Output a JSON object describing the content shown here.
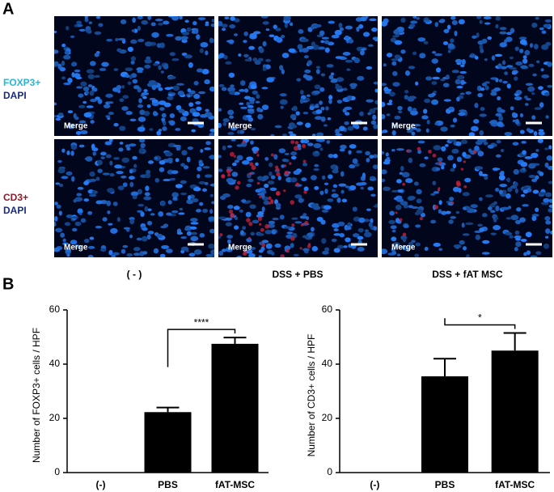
{
  "panel_labels": [
    "A",
    "B"
  ],
  "panel_a": {
    "rows": [
      {
        "marker": "FOXP3+",
        "stain": "DAPI"
      },
      {
        "marker": "CD3+",
        "stain": "DAPI"
      }
    ],
    "columns": [
      "( - )",
      "DSS + PBS",
      "DSS + fAT MSC"
    ],
    "image_label": "Merge"
  },
  "chart_data": [
    {
      "type": "bar",
      "y_label": "Number of FOXP3+ cells / HPF",
      "categories": [
        "(-)",
        "PBS",
        "fAT-MSC"
      ],
      "values": [
        0,
        22.3,
        47.5
      ],
      "errors": [
        0,
        1.7,
        2.3
      ],
      "color": "#000000",
      "ylim": [
        0,
        60
      ],
      "yticks": [
        0,
        20,
        40,
        60
      ],
      "significance": "****"
    },
    {
      "type": "bar",
      "y_label": "Number of CD3+ cells / HPF",
      "categories": [
        "(-)",
        "PBS",
        "fAT-MSC"
      ],
      "values": [
        0,
        35.5,
        45
      ],
      "errors": [
        0,
        6.5,
        6.5
      ],
      "color": "#000000",
      "ylim": [
        0,
        60
      ],
      "yticks": [
        0,
        20,
        40,
        60
      ],
      "significance": "*"
    }
  ]
}
